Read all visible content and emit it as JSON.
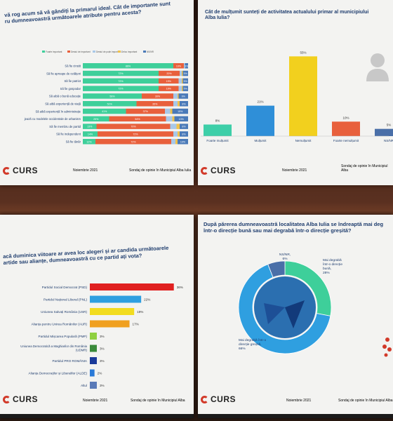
{
  "slides": {
    "attributes": {
      "title": "vă rog acum să vă gândiți la primarul ideal. Cât de importante sunt\nru dumneavoastră următoarele atribute pentru acesta?",
      "legend": [
        "Foarte important",
        "Destul de important",
        "Destul de puțin important",
        "Deloc important",
        "NS/NR"
      ],
      "footer_date": "Noiembrie 2021",
      "footer_source": "Sondaj de opinie în Municipiul Alba Iulia",
      "logo": "CURS"
    },
    "satisfaction": {
      "title": "Cât de mulțumit sunteți de activitatea actualului primar al municipiului\nAlba Iulia?",
      "footer_date": "Noiembrie 2021",
      "footer_source": "Sondaj de opinie în Municipiul Alba",
      "logo": "CURS"
    },
    "vote": {
      "title": "acă duminica viitoare ar avea loc alegeri și ar candida următoarele\nartide sau alianțe, dumneavoastră cu ce partid ați vota?",
      "footer_date": "Noiembrie 2021",
      "footer_source": "Sondaj de opinie în Municipiul Alba",
      "logo": "CURS"
    },
    "direction": {
      "title": "După părerea dumneavoastră localitatea Alba Iulia se îndreaptă mai deg\nîntr-o direcție bună sau mai degrabă într-o direcție greșită?",
      "footer_date": "Noiembrie 2021",
      "footer_source": "Sondaj de opinie în Municipiul Alba",
      "logo": "CURS"
    }
  },
  "chart_data": [
    {
      "type": "bar",
      "orientation": "horizontal-stacked",
      "title": "vă rog acum să vă gândiți la primarul ideal. Cât de importante sunt ru dumneavoastră următoarele atribute pentru acesta?",
      "categories": [
        "Să fie cinstit",
        "Să fie aproape de cetățeni",
        "Să fie patriot",
        "Să fie gospodar",
        "Să aibă o bună educație",
        "Să aibă experiență de viață",
        "Să aibă experiență în administrație",
        "jează cu modelele occidentale de urbanism",
        "Să fie membru de partid",
        "Să fie independent",
        "Să fie tânăr"
      ],
      "series": [
        {
          "name": "Foarte important",
          "color": "#3ecf9a",
          "values": [
            86,
            72,
            72,
            72,
            56,
            51,
            41,
            25,
            13,
            14,
            12
          ]
        },
        {
          "name": "Destul de important",
          "color": "#e8603c",
          "values": [
            10,
            20,
            19,
            19,
            30,
            35,
            37,
            54,
            70,
            72,
            72
          ]
        },
        {
          "name": "Destul de puțin important",
          "color": "#a8c8e8",
          "values": [
            1,
            2,
            3,
            3,
            4,
            4,
            5,
            6,
            6,
            4,
            4
          ]
        },
        {
          "name": "Deloc important",
          "color": "#f0c24a",
          "values": [
            0,
            1,
            1,
            1,
            1,
            2,
            2,
            2,
            3,
            2,
            2
          ]
        },
        {
          "name": "NS/NR",
          "color": "#4a7ab8",
          "values": [
            3,
            5,
            5,
            5,
            9,
            8,
            15,
            13,
            8,
            8,
            10
          ]
        }
      ],
      "segment_labels": [
        [
          "86%",
          "10%",
          "",
          "",
          "3%"
        ],
        [
          "72%",
          "20%",
          "",
          "",
          "5%"
        ],
        [
          "72%",
          "19%",
          "",
          "",
          "5%"
        ],
        [
          "72%",
          "19%",
          "",
          "",
          "5%"
        ],
        [
          "56%",
          "30%",
          "",
          "",
          "9%"
        ],
        [
          "51%",
          "35%",
          "",
          "",
          "8%"
        ],
        [
          "41%",
          "37%",
          "",
          "",
          "15%"
        ],
        [
          "25%",
          "54%",
          "",
          "",
          "13%"
        ],
        [
          "13%",
          "70%",
          "",
          "",
          "8%"
        ],
        [
          "14%",
          "72%",
          "",
          "",
          "8%"
        ],
        [
          "12%",
          "72%",
          "",
          "",
          "10%"
        ]
      ],
      "xlim": [
        0,
        100
      ]
    },
    {
      "type": "bar",
      "title": "Cât de mulțumit sunteți de activitatea actualului primar al municipiului Alba Iulia?",
      "categories": [
        "Foarte mulțumit",
        "Mulțumit",
        "Nemulțumit",
        "Foarte nemulțumit",
        "NS/NR"
      ],
      "values": [
        8,
        21,
        55,
        10,
        5
      ],
      "labels": [
        "8%",
        "21%",
        "55%",
        "10%",
        "5%"
      ],
      "colors": [
        "#3ecfa8",
        "#2f8fd8",
        "#f2d01e",
        "#e8603c",
        "#4a6fa8"
      ],
      "ylim": [
        0,
        60
      ]
    },
    {
      "type": "bar",
      "orientation": "horizontal",
      "title": "acă duminica viitoare ar avea loc alegeri și ar candida următoarele artide sau alianțe, dumneavoastră cu ce partid ați vota?",
      "categories": [
        "Partidul Social Democrat (PSD)",
        "Partidul Național Liberal (PNL)",
        "Uniunea Salvați România (USR)",
        "Alianța pentru Unirea Românilor (AUR)",
        "Partidul Mișcarea Populară (PMP)",
        "Uniunea Democratică a Maghiarilor din România (UDMR)",
        "Partidul PRO ROMÂNIA",
        "Alianța Democraților și Liberalilor (ALDE)",
        "Altul"
      ],
      "values": [
        36,
        22,
        19,
        17,
        3,
        3,
        3,
        2,
        3
      ],
      "labels": [
        "36%",
        "22%",
        "19%",
        "17%",
        "3%",
        "3%",
        "3%",
        "2%",
        "3%"
      ],
      "colors": [
        "#e02020",
        "#2f9fe0",
        "#f2dc20",
        "#f0a020",
        "#8fd040",
        "#3a8a3a",
        "#1a3a9a",
        "#2a7ad8",
        "#5a7ab8"
      ],
      "xlim": [
        0,
        40
      ]
    },
    {
      "type": "pie",
      "title": "După părerea dumneavoastră localitatea Alba Iulia se îndreaptă mai deg într-o direcție bună sau mai degrabă într-o direcție greșită?",
      "categories": [
        "Mai degrabă într-o direcție bună",
        "Mai degrabă într-o direcție greșită",
        "NS/NR"
      ],
      "values": [
        28,
        66,
        6
      ],
      "labels": [
        "Mai degrabă\nîntr-o direcție\nbună,\n28%",
        "Mai degrabă într-o\ndirecție greșită,\n66%",
        "NS/NR,\n6%"
      ],
      "colors": [
        "#3ecf9a",
        "#2f9fe0",
        "#4a6fa8"
      ]
    }
  ]
}
